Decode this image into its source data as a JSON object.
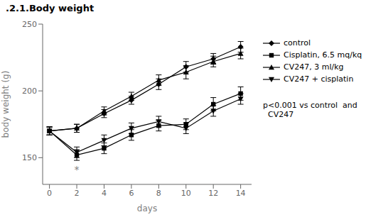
{
  "chart_data": {
    "type": "line",
    "title": ".2.1.Body weight",
    "xlabel": "days",
    "ylabel": "body weight (g)",
    "x": [
      0,
      2,
      4,
      6,
      8,
      10,
      12,
      14
    ],
    "xlim": [
      -0.5,
      14.8
    ],
    "xticks": [
      0,
      2,
      4,
      6,
      8,
      10,
      12,
      14
    ],
    "ylim": [
      130,
      250
    ],
    "yticks": [
      150,
      200,
      250
    ],
    "grid": false,
    "legend": "right",
    "series": [
      {
        "name": "control",
        "color": "#000000",
        "marker": "diamond",
        "values": [
          170,
          172,
          183,
          193,
          205,
          218,
          224,
          233
        ],
        "errors": [
          3,
          3,
          3,
          3,
          4,
          4,
          4,
          4
        ]
      },
      {
        "name": "Cisplatin, 6.5 mq/kq",
        "color": "#000000",
        "marker": "square",
        "values": [
          170,
          152,
          157,
          167,
          174,
          175,
          190,
          198
        ],
        "errors": [
          3,
          4,
          4,
          4,
          4,
          4,
          5,
          5
        ]
      },
      {
        "name": "CV247, 3 ml/kg",
        "color": "#000000",
        "marker": "triangle-up",
        "values": [
          170,
          172,
          185,
          196,
          208,
          214,
          222,
          228
        ],
        "errors": [
          3,
          3,
          3,
          3,
          4,
          5,
          4,
          4
        ]
      },
      {
        "name": "CV247 + cisplatin",
        "color": "#000000",
        "marker": "triangle-down",
        "values": [
          170,
          154,
          163,
          172,
          177,
          172,
          185,
          194
        ],
        "errors": [
          3,
          4,
          4,
          4,
          4,
          4,
          4,
          4
        ]
      }
    ],
    "annotations": [
      {
        "text": "*",
        "x": 2,
        "y": 141,
        "color": "gray"
      },
      {
        "text": "p<0.001 vs control  and\n  CV247"
      }
    ]
  }
}
